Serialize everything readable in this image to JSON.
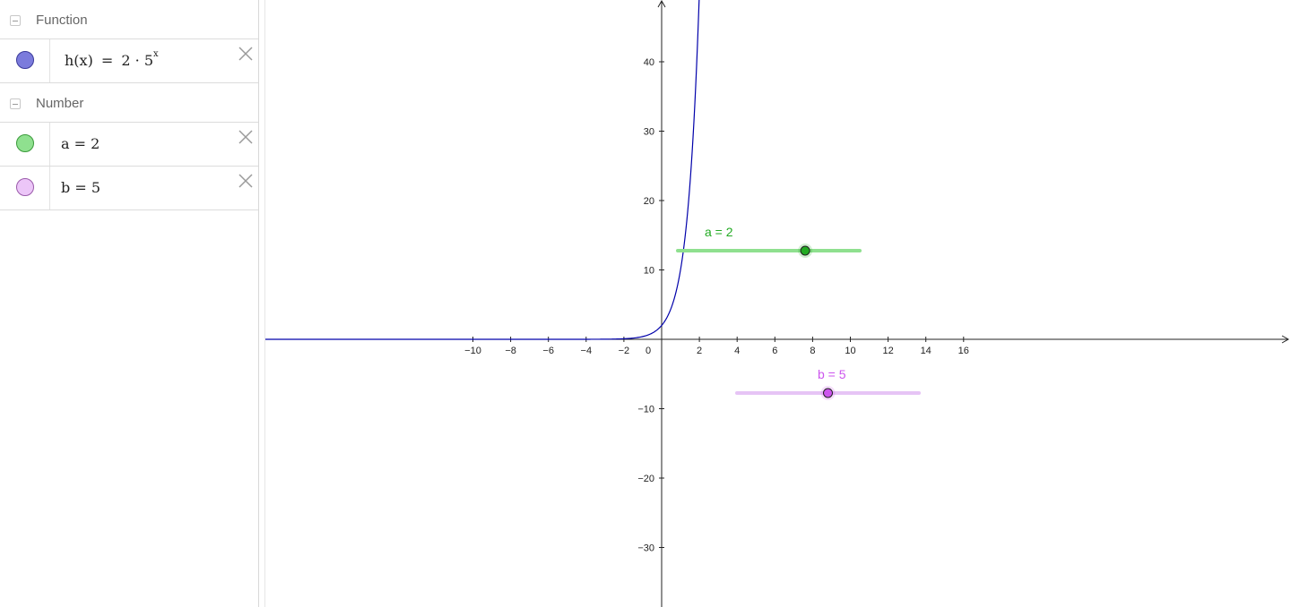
{
  "algebra": {
    "groups": [
      {
        "title": "Function"
      },
      {
        "title": "Number"
      }
    ],
    "function_row": {
      "name": "h(x)",
      "equals": "=",
      "base_coefficient": "2 · 5",
      "exponent": "x",
      "color": "#7b7bdc"
    },
    "number_rows": [
      {
        "text": "a = 2",
        "color": "#8fe08f"
      },
      {
        "text": "b = 5",
        "color": "#e6b8f5"
      }
    ]
  },
  "graphics": {
    "x_ticks": [
      "−10",
      "−8",
      "−6",
      "−4",
      "−2",
      "0",
      "2",
      "4",
      "6",
      "8",
      "10",
      "12",
      "14",
      "16"
    ],
    "y_ticks": [
      "40",
      "30",
      "20",
      "10",
      "−10",
      "−20",
      "−30"
    ],
    "x_range": [
      -10.5,
      16.5
    ],
    "y_range": [
      -38,
      49
    ],
    "curve_color": "#0000aa",
    "function": {
      "a": 2,
      "b": 5
    },
    "sliders": {
      "a": {
        "label": "a = 2",
        "value": 2,
        "min": -5,
        "max": 5,
        "color": "#22aa22",
        "track_color": "#8fe08f"
      },
      "b": {
        "label": "b = 5",
        "value": 5,
        "min": 0,
        "max": 10,
        "color": "#cc55ee",
        "track_color": "#e6c4f5"
      }
    }
  }
}
